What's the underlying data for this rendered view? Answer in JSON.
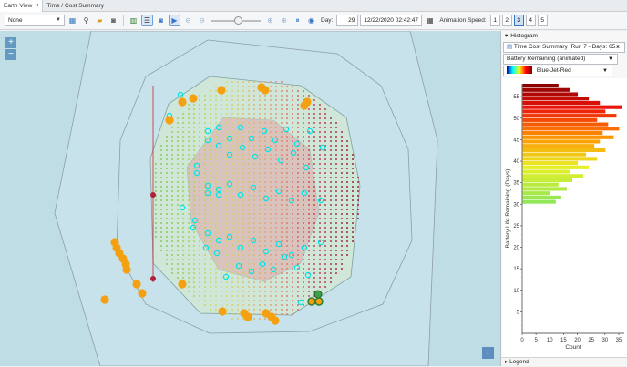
{
  "tabs": [
    {
      "label": "Earth View",
      "close": "×"
    },
    {
      "label": "Time / Cost Summary",
      "close": ""
    }
  ],
  "toolbar": {
    "layer_select": "None",
    "day_label": "Day:",
    "day_value": "29",
    "datetime_value": "12/22/2020 02:42:47",
    "animation_speed_label": "Animation Speed:",
    "speeds": [
      "1",
      "2",
      "3",
      "4",
      "5"
    ],
    "active_speed": "3",
    "slider_level": 0.55
  },
  "map": {
    "zoom_in": "+",
    "zoom_out": "−",
    "info": "i",
    "colors": {
      "water": "#bfdde5",
      "outline": "#8f9ea4",
      "well": "#00e5e5",
      "asset": "#f5a011",
      "line": "#c83232"
    }
  },
  "panel": {
    "histogram_header": "Histogram",
    "source_select": "Time Cost Summary [Run 7 - Days: 65...",
    "property_select": "Battery Remaining (animated)",
    "colormap_select": "Blue-Jet-Red",
    "legend_header": "Legend"
  },
  "chart_data": {
    "type": "bar",
    "orientation": "horizontal",
    "ylabel": "Battery Life Remaining (Days)",
    "xlabel": "Count",
    "x_ticks": [
      "0",
      "5",
      "10",
      "15",
      "20",
      "25",
      "30",
      "35"
    ],
    "y_ticks": [
      "5",
      "10",
      "15",
      "20",
      "25",
      "30",
      "35",
      "40",
      "45",
      "50",
      "55"
    ],
    "xlim": [
      0,
      37
    ],
    "ylim": [
      0,
      58
    ],
    "colormap": "Blue-Jet-Red",
    "bins": [
      {
        "y": 30.5,
        "count": 12
      },
      {
        "y": 31.5,
        "count": 14
      },
      {
        "y": 32.5,
        "count": 10
      },
      {
        "y": 33.5,
        "count": 16
      },
      {
        "y": 34.5,
        "count": 13
      },
      {
        "y": 35.5,
        "count": 18
      },
      {
        "y": 36.5,
        "count": 22
      },
      {
        "y": 37.5,
        "count": 17
      },
      {
        "y": 38.5,
        "count": 24
      },
      {
        "y": 39.5,
        "count": 20
      },
      {
        "y": 40.5,
        "count": 27
      },
      {
        "y": 41.5,
        "count": 23
      },
      {
        "y": 42.5,
        "count": 30
      },
      {
        "y": 43.5,
        "count": 26
      },
      {
        "y": 44.5,
        "count": 28
      },
      {
        "y": 45.5,
        "count": 33
      },
      {
        "y": 46.5,
        "count": 29
      },
      {
        "y": 47.5,
        "count": 35
      },
      {
        "y": 48.5,
        "count": 31
      },
      {
        "y": 49.5,
        "count": 27
      },
      {
        "y": 50.5,
        "count": 34
      },
      {
        "y": 51.5,
        "count": 30
      },
      {
        "y": 52.5,
        "count": 36
      },
      {
        "y": 53.5,
        "count": 28
      },
      {
        "y": 54.5,
        "count": 24
      },
      {
        "y": 55.5,
        "count": 20
      },
      {
        "y": 56.5,
        "count": 17
      },
      {
        "y": 57.5,
        "count": 13
      }
    ]
  }
}
